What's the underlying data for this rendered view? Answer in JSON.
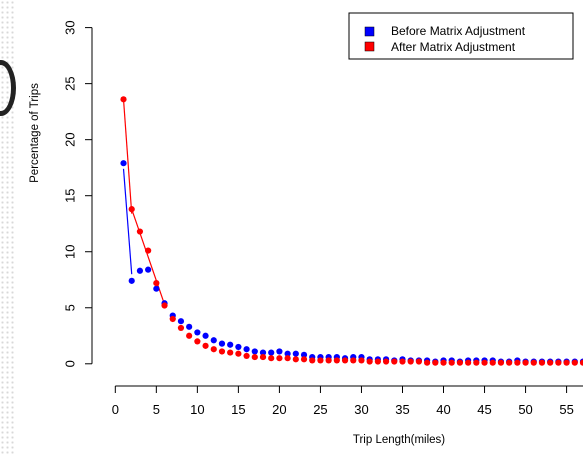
{
  "chart_data": {
    "type": "scatter",
    "title": "",
    "xlabel": "Trip Length(miles)",
    "ylabel": "Percentage of Trips",
    "xlim": [
      -1.5,
      57
    ],
    "ylim": [
      -1,
      30.5
    ],
    "xticks": [
      0,
      5,
      10,
      15,
      20,
      25,
      30,
      35,
      40,
      45,
      50,
      55
    ],
    "yticks": [
      0,
      5,
      10,
      15,
      20,
      25,
      30
    ],
    "legend_position": "top-right",
    "series": [
      {
        "name": "Before Matrix Adjustment",
        "color": "#0000ff",
        "x": [
          1,
          2,
          3,
          4,
          5,
          6,
          7,
          8,
          9,
          10,
          11,
          12,
          13,
          14,
          15,
          16,
          17,
          18,
          19,
          20,
          21,
          22,
          23,
          24,
          25,
          26,
          27,
          28,
          29,
          30,
          31,
          32,
          33,
          34,
          35,
          36,
          37,
          38,
          39,
          40,
          41,
          42,
          43,
          44,
          45,
          46,
          47,
          48,
          49,
          50,
          51,
          52,
          53,
          54,
          55,
          56,
          57
        ],
        "values": [
          17.9,
          7.4,
          8.3,
          8.4,
          6.7,
          5.4,
          4.3,
          3.8,
          3.3,
          2.8,
          2.5,
          2.1,
          1.8,
          1.7,
          1.5,
          1.3,
          1.1,
          1.0,
          1.0,
          1.1,
          0.9,
          0.9,
          0.8,
          0.6,
          0.6,
          0.6,
          0.6,
          0.5,
          0.6,
          0.6,
          0.4,
          0.4,
          0.4,
          0.3,
          0.4,
          0.3,
          0.3,
          0.3,
          0.2,
          0.3,
          0.3,
          0.2,
          0.3,
          0.3,
          0.3,
          0.3,
          0.2,
          0.2,
          0.3,
          0.2,
          0.2,
          0.2,
          0.2,
          0.2,
          0.2,
          0.2,
          0.2
        ]
      },
      {
        "name": "After Matrix Adjustment",
        "color": "#ff0000",
        "x": [
          1,
          2,
          3,
          4,
          5,
          6,
          7,
          8,
          9,
          10,
          11,
          12,
          13,
          14,
          15,
          16,
          17,
          18,
          19,
          20,
          21,
          22,
          23,
          24,
          25,
          26,
          27,
          28,
          29,
          30,
          31,
          32,
          33,
          34,
          35,
          36,
          37,
          38,
          39,
          40,
          41,
          42,
          43,
          44,
          45,
          46,
          47,
          48,
          49,
          50,
          51,
          52,
          53,
          54,
          55,
          56,
          57
        ],
        "values": [
          23.6,
          13.8,
          11.8,
          10.1,
          7.2,
          5.2,
          4.0,
          3.2,
          2.5,
          2.0,
          1.6,
          1.3,
          1.1,
          1.0,
          0.9,
          0.7,
          0.6,
          0.6,
          0.5,
          0.5,
          0.5,
          0.4,
          0.4,
          0.3,
          0.3,
          0.3,
          0.3,
          0.3,
          0.3,
          0.3,
          0.2,
          0.2,
          0.2,
          0.2,
          0.2,
          0.2,
          0.2,
          0.1,
          0.1,
          0.1,
          0.1,
          0.1,
          0.1,
          0.1,
          0.1,
          0.1,
          0.1,
          0.1,
          0.1,
          0.1,
          0.1,
          0.1,
          0.1,
          0.1,
          0.1,
          0.1,
          0.1
        ]
      }
    ],
    "connector_segments": [
      {
        "series": 0,
        "from": [
          1,
          17.4
        ],
        "to": [
          2,
          8.0
        ]
      },
      {
        "series": 1,
        "from": [
          1,
          23.6
        ],
        "to": [
          2,
          13.4
        ]
      },
      {
        "series": 1,
        "from": [
          2,
          13.8
        ],
        "to": [
          6,
          5.3
        ]
      }
    ]
  }
}
